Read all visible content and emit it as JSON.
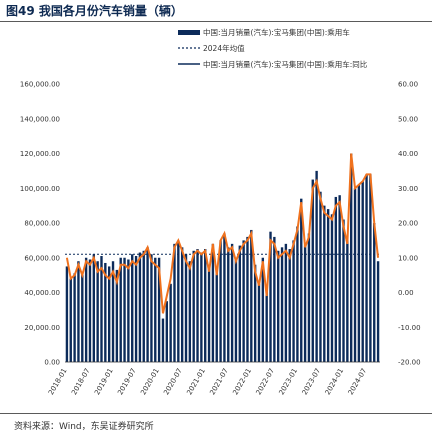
{
  "header": {
    "title": "图49 我国各月份汽车销量（辆）"
  },
  "footer": {
    "source": "资料来源：Wind，东吴证券研究所"
  },
  "colors": {
    "bar": "#0c2b5a",
    "avg": "#0c2b5a",
    "yoy": "#f0721e"
  },
  "chart_data": {
    "type": "bar",
    "title": "图49 我国各月份汽车销量（辆）",
    "xlabel": "",
    "ylabel": "",
    "legend": [
      "中国:当月销量(汽车):宝马集团(中国):乘用车",
      "2024年均值",
      "中国:当月销量(汽车):宝马集团(中国):乘用车:同比"
    ],
    "legend_position": "top",
    "ylim": [
      0,
      160000
    ],
    "y2lim": [
      -20,
      60
    ],
    "y_ticks": [
      "0.00",
      "20,000.00",
      "40,000.00",
      "60,000.00",
      "80,000.00",
      "100,000.00",
      "120,000.00",
      "140,000.00",
      "160,000.00"
    ],
    "y2_ticks": [
      "-20.00",
      "-10.00",
      "0.00",
      "10.00",
      "20.00",
      "30.00",
      "40.00",
      "50.00",
      "60.00"
    ],
    "x_tick_labels": [
      "2018-01",
      "2018-07",
      "2019-01",
      "2019-07",
      "2020-01",
      "2020-07",
      "2021-01",
      "2021-07",
      "2022-01",
      "2022-07",
      "2023-01",
      "2023-07",
      "2024-01",
      "2024-07"
    ],
    "x_tick_every": 6,
    "avg_value": 62000,
    "values": [
      55000,
      48000,
      51000,
      58000,
      52000,
      60000,
      59000,
      62000,
      58000,
      61000,
      57000,
      55000,
      58000,
      53000,
      60000,
      60000,
      59000,
      62000,
      61000,
      63000,
      64000,
      66000,
      62000,
      60000,
      60000,
      25000,
      35000,
      45000,
      68000,
      70000,
      66000,
      62000,
      58000,
      64000,
      65000,
      63000,
      65000,
      56000,
      68000,
      52000,
      70000,
      74000,
      66000,
      68000,
      60000,
      67000,
      70000,
      72000,
      76000,
      56000,
      45000,
      60000,
      42000,
      75000,
      72000,
      64000,
      66000,
      68000,
      65000,
      70000,
      78000,
      94000,
      67000,
      74000,
      105000,
      110000,
      98000,
      90000,
      88000,
      85000,
      95000,
      96000,
      82000,
      70000,
      120000,
      100000,
      102000,
      104000,
      108000,
      108000,
      80000,
      58000
    ],
    "yoy": [
      10,
      4,
      5,
      8,
      5,
      9,
      8,
      10,
      6,
      7,
      5,
      4,
      6,
      3,
      8,
      8,
      7,
      9,
      8,
      10,
      11,
      13,
      9,
      8,
      7,
      -6,
      -1,
      4,
      13,
      15,
      12,
      9,
      7,
      11,
      12,
      11,
      12,
      6,
      14,
      5,
      15,
      17,
      12,
      13,
      9,
      12,
      14,
      15,
      17,
      6,
      2,
      9,
      -1,
      15,
      14,
      10,
      11,
      12,
      10,
      14,
      18,
      26,
      13,
      16,
      30,
      32,
      27,
      23,
      22,
      21,
      25,
      26,
      19,
      14,
      40,
      30,
      31,
      32,
      34,
      34,
      20,
      10
    ]
  }
}
